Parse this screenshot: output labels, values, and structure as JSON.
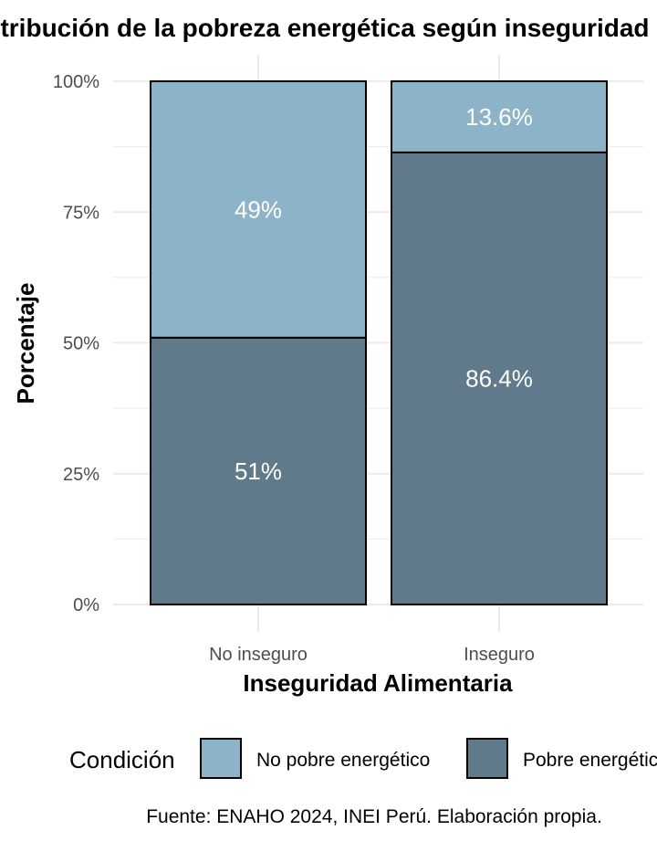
{
  "chart_data": {
    "type": "bar",
    "stacked": true,
    "title": "Distribución de la pobreza energética según inseguridad alimentaria",
    "xlabel": "Inseguridad Alimentaria",
    "ylabel": "Porcentaje",
    "ylim": [
      0,
      100
    ],
    "y_ticks": [
      "0%",
      "25%",
      "50%",
      "75%",
      "100%"
    ],
    "grid": true,
    "categories": [
      "No inseguro",
      "Inseguro"
    ],
    "series": [
      {
        "name": "Pobre energético",
        "values": [
          51,
          86.4
        ],
        "labels": [
          "51%",
          "86.4%"
        ],
        "color": "#607a8b"
      },
      {
        "name": "No pobre energético",
        "values": [
          49,
          13.6
        ],
        "labels": [
          "49%",
          "13.6%"
        ],
        "color": "#8db3c8"
      }
    ],
    "legend": {
      "title": "Condición",
      "position": "bottom",
      "items": [
        "No pobre energético",
        "Pobre energético"
      ]
    },
    "caption": "Fuente: ENAHO 2024, INEI Perú. Elaboración propia."
  }
}
